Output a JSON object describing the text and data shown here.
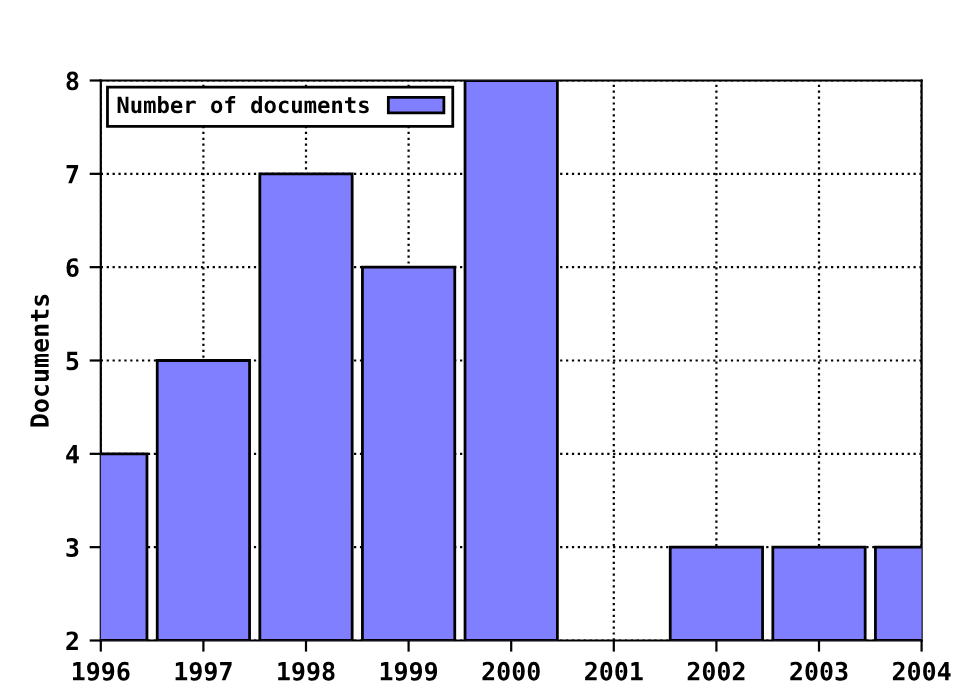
{
  "chart_data": {
    "type": "bar",
    "ylabel": "Documents",
    "x": [
      1996,
      1997,
      1998,
      1999,
      2000,
      2001,
      2002,
      2003,
      2004
    ],
    "series": [
      {
        "name": "Number of documents",
        "color": "#7f7fff",
        "values": [
          4,
          5,
          7,
          6,
          8,
          null,
          3,
          3,
          3
        ]
      }
    ],
    "xlim": [
      1996,
      2004
    ],
    "xticks": [
      1996,
      1997,
      1998,
      1999,
      2000,
      2001,
      2002,
      2003,
      2004
    ],
    "ylim": [
      2,
      8
    ],
    "yticks": [
      2,
      3,
      4,
      5,
      6,
      7,
      8
    ],
    "grid": true,
    "legend": "top left"
  }
}
